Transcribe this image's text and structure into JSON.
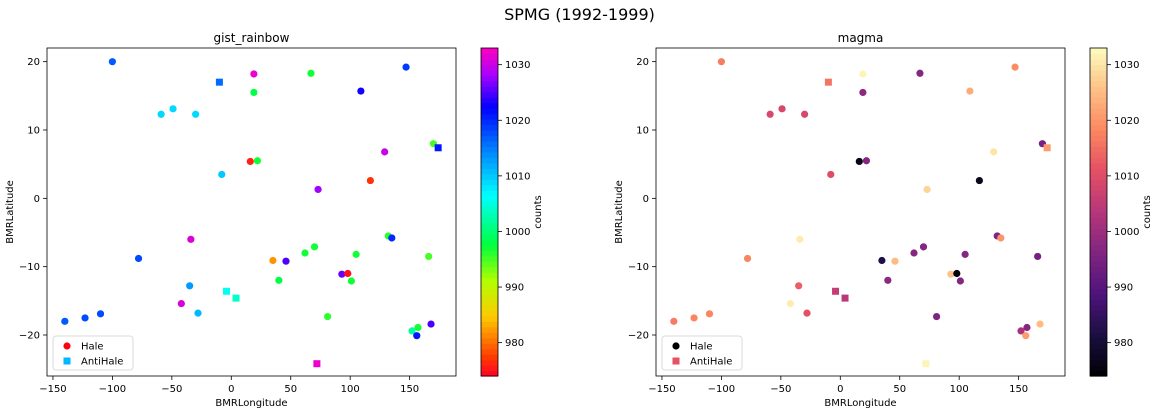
{
  "figure": {
    "title": "SPMG (1992-1999)"
  },
  "chart_data": [
    {
      "type": "scatter",
      "title": "gist_rainbow",
      "xlabel": "BMRLongitude",
      "ylabel": "BMRLatitude",
      "xlim": [
        -155,
        189
      ],
      "ylim": [
        -26,
        22
      ],
      "xticks": [
        -150,
        -100,
        -50,
        0,
        50,
        100,
        150
      ],
      "yticks": [
        -20,
        -10,
        0,
        10,
        20
      ],
      "grid": false,
      "legend_position": "lower-left",
      "colormap": "gist_rainbow",
      "colorbar": {
        "label": "counts",
        "range": [
          974,
          1033
        ],
        "ticks": [
          980,
          990,
          1000,
          1010,
          1020,
          1030
        ]
      },
      "series": [
        {
          "name": "Hale",
          "marker": "circle",
          "legend_color": "#ff0010",
          "points": [
            {
              "x": -100,
              "y": 20,
              "c": 1017
            },
            {
              "x": 19,
              "y": 18.2,
              "c": 1032
            },
            {
              "x": 67,
              "y": 18.3,
              "c": 997
            },
            {
              "x": 147,
              "y": 19.2,
              "c": 1019
            },
            {
              "x": 19,
              "y": 15.5,
              "c": 998
            },
            {
              "x": 109,
              "y": 15.7,
              "c": 1023
            },
            {
              "x": -59,
              "y": 12.3,
              "c": 1009
            },
            {
              "x": -49,
              "y": 13.1,
              "c": 1009
            },
            {
              "x": -30,
              "y": 12.3,
              "c": 1009
            },
            {
              "x": 170,
              "y": 8,
              "c": 995
            },
            {
              "x": 129,
              "y": 6.8,
              "c": 1030
            },
            {
              "x": 16,
              "y": 5.4,
              "c": 976
            },
            {
              "x": 22,
              "y": 5.5,
              "c": 997
            },
            {
              "x": -8,
              "y": 3.5,
              "c": 1010
            },
            {
              "x": 117,
              "y": 2.6,
              "c": 977
            },
            {
              "x": 73,
              "y": 1.3,
              "c": 1028
            },
            {
              "x": 132,
              "y": -5.5,
              "c": 996
            },
            {
              "x": 135,
              "y": -5.8,
              "c": 1020
            },
            {
              "x": -34,
              "y": -6,
              "c": 1031
            },
            {
              "x": 70,
              "y": -7.1,
              "c": 997
            },
            {
              "x": 62,
              "y": -8,
              "c": 997
            },
            {
              "x": 105,
              "y": -8.2,
              "c": 997
            },
            {
              "x": 166,
              "y": -8.5,
              "c": 995
            },
            {
              "x": -78,
              "y": -8.8,
              "c": 1018
            },
            {
              "x": 35,
              "y": -9.1,
              "c": 982
            },
            {
              "x": 46,
              "y": -9.2,
              "c": 1025
            },
            {
              "x": 93,
              "y": -11.1,
              "c": 1026
            },
            {
              "x": 98,
              "y": -11,
              "c": 975
            },
            {
              "x": 101,
              "y": -12.1,
              "c": 997
            },
            {
              "x": 40,
              "y": -12,
              "c": 998
            },
            {
              "x": -35,
              "y": -12.8,
              "c": 1013
            },
            {
              "x": -42,
              "y": -15.4,
              "c": 1031
            },
            {
              "x": -28,
              "y": -16.8,
              "c": 1011
            },
            {
              "x": 81,
              "y": -17.3,
              "c": 996
            },
            {
              "x": -110,
              "y": -16.9,
              "c": 1018
            },
            {
              "x": -123,
              "y": -17.5,
              "c": 1018
            },
            {
              "x": -140,
              "y": -18,
              "c": 1017
            },
            {
              "x": 157,
              "y": -18.9,
              "c": 997
            },
            {
              "x": 152,
              "y": -19.4,
              "c": 1002
            },
            {
              "x": 168,
              "y": -18.4,
              "c": 1025
            },
            {
              "x": 156,
              "y": -20.1,
              "c": 1021
            }
          ]
        },
        {
          "name": "AntiHale",
          "marker": "square",
          "legend_color": "#00b8ff",
          "points": [
            {
              "x": -10,
              "y": 17,
              "c": 1016
            },
            {
              "x": 174,
              "y": 7.4,
              "c": 1021
            },
            {
              "x": -4,
              "y": -13.6,
              "c": 1006
            },
            {
              "x": 4,
              "y": -14.6,
              "c": 1004
            },
            {
              "x": 72,
              "y": -24.2,
              "c": 1032
            }
          ]
        }
      ]
    },
    {
      "type": "scatter",
      "title": "magma",
      "xlabel": "BMRLongitude",
      "ylabel": "BMRLatitude",
      "xlim": [
        -155,
        189
      ],
      "ylim": [
        -26,
        22
      ],
      "xticks": [
        -150,
        -100,
        -50,
        0,
        50,
        100,
        150
      ],
      "yticks": [
        -20,
        -10,
        0,
        10,
        20
      ],
      "grid": false,
      "legend_position": "lower-left",
      "colormap": "magma",
      "colorbar": {
        "label": "counts",
        "range": [
          974,
          1033
        ],
        "ticks": [
          980,
          990,
          1000,
          1010,
          1020,
          1030
        ]
      },
      "series": [
        {
          "name": "Hale",
          "marker": "circle",
          "legend_color": "#000004",
          "points": [
            {
              "x": -100,
              "y": 20,
              "c": 1017
            },
            {
              "x": 19,
              "y": 18.2,
              "c": 1032
            },
            {
              "x": 67,
              "y": 18.3,
              "c": 997
            },
            {
              "x": 147,
              "y": 19.2,
              "c": 1019
            },
            {
              "x": 19,
              "y": 15.5,
              "c": 998
            },
            {
              "x": 109,
              "y": 15.7,
              "c": 1023
            },
            {
              "x": -59,
              "y": 12.3,
              "c": 1009
            },
            {
              "x": -49,
              "y": 13.1,
              "c": 1009
            },
            {
              "x": -30,
              "y": 12.3,
              "c": 1009
            },
            {
              "x": 170,
              "y": 8,
              "c": 995
            },
            {
              "x": 129,
              "y": 6.8,
              "c": 1030
            },
            {
              "x": 16,
              "y": 5.4,
              "c": 976
            },
            {
              "x": 22,
              "y": 5.5,
              "c": 997
            },
            {
              "x": -8,
              "y": 3.5,
              "c": 1010
            },
            {
              "x": 117,
              "y": 2.6,
              "c": 977
            },
            {
              "x": 73,
              "y": 1.3,
              "c": 1028
            },
            {
              "x": 132,
              "y": -5.5,
              "c": 996
            },
            {
              "x": 135,
              "y": -5.8,
              "c": 1020
            },
            {
              "x": -34,
              "y": -6,
              "c": 1031
            },
            {
              "x": 70,
              "y": -7.1,
              "c": 997
            },
            {
              "x": 62,
              "y": -8,
              "c": 997
            },
            {
              "x": 105,
              "y": -8.2,
              "c": 997
            },
            {
              "x": 166,
              "y": -8.5,
              "c": 995
            },
            {
              "x": -78,
              "y": -8.8,
              "c": 1018
            },
            {
              "x": 35,
              "y": -9.1,
              "c": 982
            },
            {
              "x": 46,
              "y": -9.2,
              "c": 1025
            },
            {
              "x": 93,
              "y": -11.1,
              "c": 1026
            },
            {
              "x": 98,
              "y": -11,
              "c": 975
            },
            {
              "x": 101,
              "y": -12.1,
              "c": 997
            },
            {
              "x": 40,
              "y": -12,
              "c": 998
            },
            {
              "x": -35,
              "y": -12.8,
              "c": 1013
            },
            {
              "x": -42,
              "y": -15.4,
              "c": 1031
            },
            {
              "x": -28,
              "y": -16.8,
              "c": 1011
            },
            {
              "x": 81,
              "y": -17.3,
              "c": 996
            },
            {
              "x": -110,
              "y": -16.9,
              "c": 1018
            },
            {
              "x": -123,
              "y": -17.5,
              "c": 1018
            },
            {
              "x": -140,
              "y": -18,
              "c": 1017
            },
            {
              "x": 157,
              "y": -18.9,
              "c": 997
            },
            {
              "x": 152,
              "y": -19.4,
              "c": 1002
            },
            {
              "x": 168,
              "y": -18.4,
              "c": 1025
            },
            {
              "x": 156,
              "y": -20.1,
              "c": 1021
            }
          ]
        },
        {
          "name": "AntiHale",
          "marker": "square",
          "legend_color": "#e75263",
          "points": [
            {
              "x": -10,
              "y": 17,
              "c": 1016
            },
            {
              "x": 174,
              "y": 7.4,
              "c": 1021
            },
            {
              "x": -4,
              "y": -13.6,
              "c": 1006
            },
            {
              "x": 4,
              "y": -14.6,
              "c": 1004
            },
            {
              "x": 72,
              "y": -24.2,
              "c": 1032
            }
          ]
        }
      ]
    }
  ]
}
